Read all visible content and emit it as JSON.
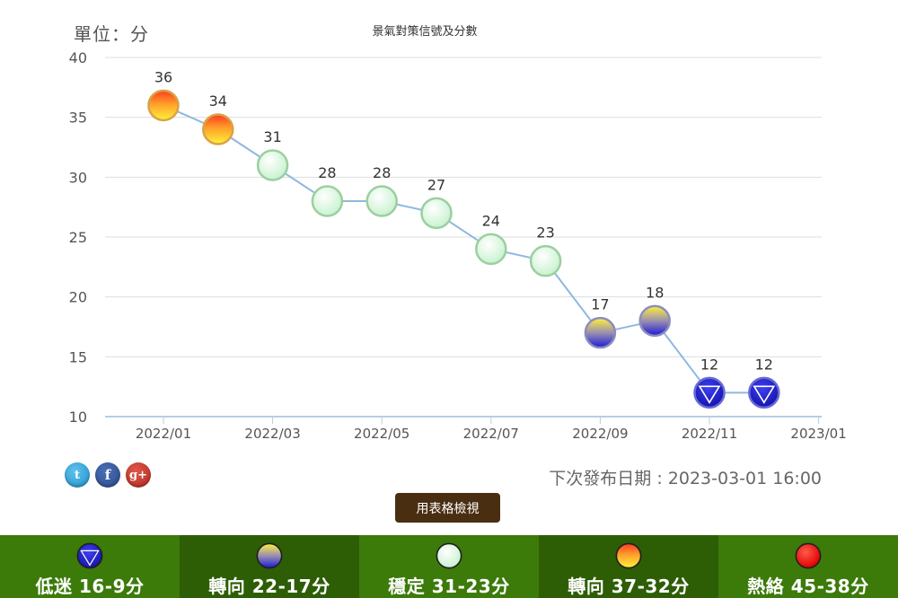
{
  "header": {
    "unit_label": "單位：分",
    "title": "景氣對策信號及分數"
  },
  "chart_data": {
    "type": "line",
    "title": "景氣對策信號及分數",
    "ylim": [
      10,
      40
    ],
    "y_ticks": [
      10,
      15,
      20,
      25,
      30,
      35,
      40
    ],
    "x_tick_labels": [
      "2022/01",
      "2022/03",
      "2022/05",
      "2022/07",
      "2022/09",
      "2022/11",
      "2023/01"
    ],
    "x": [
      "2022/01",
      "2022/02",
      "2022/03",
      "2022/04",
      "2022/05",
      "2022/06",
      "2022/07",
      "2022/08",
      "2022/09",
      "2022/10",
      "2022/11",
      "2022/12"
    ],
    "values": [
      36,
      34,
      31,
      28,
      28,
      27,
      24,
      23,
      17,
      18,
      12,
      12
    ],
    "signals": [
      "yellow-red",
      "yellow-red",
      "green",
      "green",
      "green",
      "green",
      "green",
      "green",
      "yellow-blue",
      "yellow-blue",
      "blue",
      "blue"
    ],
    "grid": true,
    "line_color": "#8fb8e0"
  },
  "footer": {
    "next_release": "下次發布日期 : 2023-03-01 16:00",
    "table_button": "用表格檢視",
    "social": [
      "twitter-icon",
      "facebook-icon",
      "google-plus-icon"
    ],
    "social_glyphs": [
      "t",
      "f",
      "g+"
    ]
  },
  "legend": [
    {
      "label": "低迷 16-9分",
      "signal": "blue"
    },
    {
      "label": "轉向 22-17分",
      "signal": "yellow-blue"
    },
    {
      "label": "穩定 31-23分",
      "signal": "green"
    },
    {
      "label": "轉向 37-32分",
      "signal": "yellow-red"
    },
    {
      "label": "熱絡 45-38分",
      "signal": "red"
    }
  ],
  "colors": {
    "legend_dark": "#2d5e06",
    "legend_light": "#3c7a0a",
    "button_bg": "#4a2e12",
    "grid": "#dddddd"
  }
}
